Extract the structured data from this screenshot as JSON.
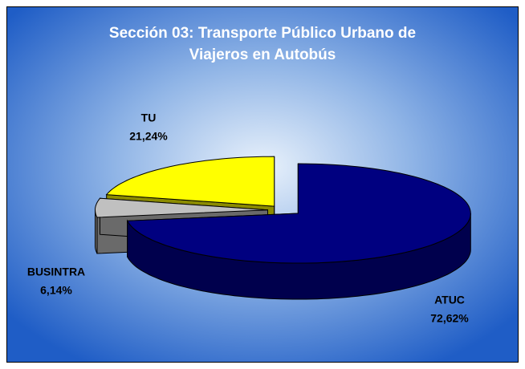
{
  "chart_data": {
    "type": "pie3d",
    "title": "Sección 03: Transporte Público Urbano de Viajeros en Autobús",
    "categories": [
      "ATUC",
      "BUSINTRA",
      "TU"
    ],
    "values": [
      72.62,
      6.14,
      21.24
    ],
    "value_labels": [
      "72,62%",
      "6,14%",
      "21,24%"
    ],
    "colors": [
      "#000080",
      "#c0c0c0",
      "#ffff00"
    ]
  }
}
